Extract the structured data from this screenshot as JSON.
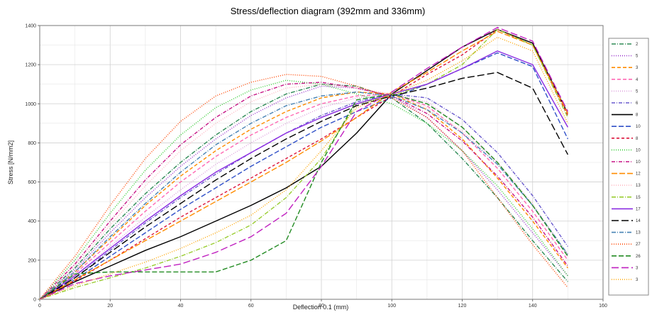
{
  "chart_data": {
    "type": "line",
    "title": "Stress/deflection diagram (392mm and 336mm)",
    "xlabel": "Deflection 0.1 (mm)",
    "ylabel": "Stress [N/mm2]",
    "xlim": [
      0,
      160
    ],
    "ylim": [
      0,
      1400
    ],
    "xticks": [
      "0",
      "20",
      "40",
      "60",
      "80",
      "100",
      "120",
      "140",
      "160"
    ],
    "yticks": [
      "0",
      "200",
      "400",
      "600",
      "800",
      "1000",
      "1200",
      "1400"
    ],
    "grid": true,
    "legend_position": "right",
    "x": [
      0,
      10,
      20,
      30,
      40,
      50,
      60,
      70,
      80,
      90,
      100,
      110,
      120,
      130,
      140,
      150
    ],
    "series": [
      {
        "name": "2",
        "color": "#2e8b57",
        "dash": "6,2,1,2",
        "values": [
          0,
          160,
          360,
          540,
          700,
          840,
          960,
          1050,
          1100,
          1090,
          1030,
          900,
          720,
          520,
          300,
          90
        ]
      },
      {
        "name": "5",
        "color": "#9932cc",
        "dash": "1,2",
        "values": [
          0,
          150,
          340,
          520,
          680,
          820,
          940,
          1030,
          1090,
          1080,
          1040,
          930,
          760,
          560,
          340,
          120
        ]
      },
      {
        "name": "3",
        "color": "#ff8c00",
        "dash": "5,3",
        "values": [
          0,
          140,
          310,
          480,
          630,
          760,
          870,
          960,
          1030,
          1060,
          1050,
          970,
          820,
          620,
          400,
          160
        ]
      },
      {
        "name": "4",
        "color": "#ff69b4",
        "dash": "5,3",
        "values": [
          0,
          130,
          290,
          450,
          600,
          730,
          840,
          930,
          1000,
          1040,
          1050,
          990,
          850,
          670,
          450,
          200
        ]
      },
      {
        "name": "5",
        "color": "#dda0dd",
        "dash": "1,2",
        "values": [
          0,
          120,
          270,
          420,
          560,
          690,
          800,
          900,
          980,
          1030,
          1050,
          1010,
          880,
          700,
          480,
          230
        ]
      },
      {
        "name": "6",
        "color": "#6a5acd",
        "dash": "5,2,1,2",
        "values": [
          0,
          110,
          250,
          390,
          520,
          640,
          750,
          850,
          940,
          1010,
          1050,
          1030,
          920,
          750,
          530,
          270
        ]
      },
      {
        "name": "8",
        "color": "#000000",
        "dash": "",
        "values": [
          0,
          90,
          170,
          250,
          320,
          400,
          480,
          570,
          680,
          850,
          1050,
          1170,
          1290,
          1380,
          1310,
          950
        ]
      },
      {
        "name": "10",
        "color": "#3050c8",
        "dash": "7,3",
        "values": [
          0,
          100,
          220,
          340,
          460,
          570,
          680,
          780,
          880,
          960,
          1030,
          1100,
          1180,
          1260,
          1190,
          820
        ]
      },
      {
        "name": "8",
        "color": "#dc143c",
        "dash": "4,3",
        "values": [
          0,
          95,
          200,
          310,
          420,
          520,
          620,
          720,
          820,
          930,
          1040,
          1150,
          1250,
          1380,
          1300,
          940
        ]
      },
      {
        "name": "10",
        "color": "#32cd32",
        "dash": "1,2",
        "values": [
          0,
          200,
          440,
          660,
          840,
          980,
          1070,
          1120,
          1100,
          1050,
          1000,
          900,
          760,
          580,
          360,
          120
        ]
      },
      {
        "name": "10",
        "color": "#c71585",
        "dash": "5,2,1,2",
        "values": [
          0,
          180,
          400,
          610,
          790,
          930,
          1040,
          1100,
          1110,
          1080,
          1040,
          950,
          810,
          630,
          420,
          170
        ]
      },
      {
        "name": "12",
        "color": "#ff8c00",
        "dash": "8,3",
        "values": [
          0,
          100,
          200,
          300,
          400,
          500,
          600,
          700,
          810,
          930,
          1060,
          1160,
          1270,
          1370,
          1300,
          950
        ]
      },
      {
        "name": "13",
        "color": "#ffb6c1",
        "dash": "1,2",
        "values": [
          0,
          170,
          380,
          580,
          760,
          900,
          1010,
          1080,
          1100,
          1080,
          1050,
          980,
          860,
          700,
          490,
          220
        ]
      },
      {
        "name": "15",
        "color": "#9acd32",
        "dash": "6,2,1,2",
        "values": [
          0,
          60,
          110,
          160,
          220,
          290,
          380,
          520,
          720,
          1000,
          1040,
          1100,
          1200,
          1380,
          1300,
          930
        ]
      },
      {
        "name": "17",
        "color": "#8a2be2",
        "dash": "",
        "values": [
          0,
          120,
          260,
          400,
          530,
          650,
          750,
          850,
          930,
          1000,
          1050,
          1100,
          1180,
          1270,
          1200,
          880
        ]
      },
      {
        "name": "14",
        "color": "#000000",
        "dash": "10,4",
        "values": [
          0,
          110,
          240,
          370,
          490,
          610,
          720,
          820,
          910,
          990,
          1040,
          1080,
          1130,
          1160,
          1080,
          740
        ]
      },
      {
        "name": "13",
        "color": "#4682b4",
        "dash": "6,2,1,2",
        "values": [
          0,
          140,
          320,
          490,
          650,
          790,
          900,
          990,
          1040,
          1060,
          1040,
          970,
          850,
          690,
          480,
          230
        ]
      },
      {
        "name": "27",
        "color": "#ff4500",
        "dash": "1,2",
        "values": [
          0,
          220,
          480,
          720,
          910,
          1040,
          1110,
          1150,
          1140,
          1090,
          1030,
          930,
          760,
          520,
          280,
          60
        ]
      },
      {
        "name": "26",
        "color": "#228b22",
        "dash": "7,3",
        "values": [
          0,
          130,
          140,
          140,
          140,
          140,
          200,
          300,
          700,
          1020,
          1050,
          1000,
          880,
          700,
          480,
          220
        ]
      },
      {
        "name": "3",
        "color": "#c020c0",
        "dash": "10,4",
        "values": [
          0,
          80,
          120,
          150,
          180,
          240,
          320,
          440,
          680,
          960,
          1060,
          1180,
          1290,
          1390,
          1320,
          960
        ]
      },
      {
        "name": "3",
        "color": "#ffa500",
        "dash": "1,2",
        "values": [
          0,
          70,
          130,
          190,
          260,
          340,
          430,
          560,
          760,
          980,
          1050,
          1120,
          1220,
          1340,
          1270,
          900
        ]
      }
    ]
  }
}
